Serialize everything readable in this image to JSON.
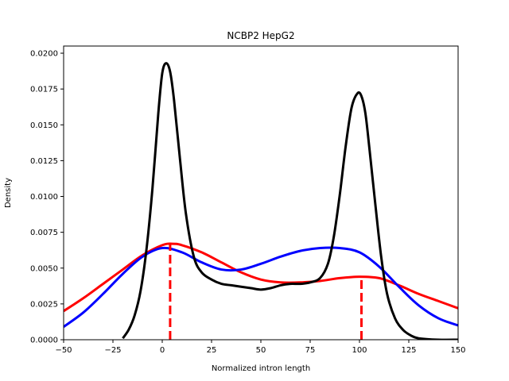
{
  "chart_data": {
    "type": "line",
    "title": "NCBP2 HepG2",
    "xlabel": "Normalized intron length",
    "ylabel": "Density",
    "xlim": [
      -50,
      150
    ],
    "ylim": [
      0,
      0.0205
    ],
    "x_ticks": [
      -50,
      -25,
      0,
      25,
      50,
      75,
      100,
      125,
      150
    ],
    "x_tick_labels": [
      "−50",
      "−25",
      "0",
      "25",
      "50",
      "75",
      "100",
      "125",
      "150"
    ],
    "y_ticks": [
      0,
      0.0025,
      0.005,
      0.0075,
      0.01,
      0.0125,
      0.015,
      0.0175,
      0.02
    ],
    "y_tick_labels": [
      "0.0000",
      "0.0025",
      "0.0050",
      "0.0075",
      "0.0100",
      "0.0125",
      "0.0150",
      "0.0175",
      "0.0200"
    ],
    "grid": false,
    "series": [
      {
        "color": "#ff0000",
        "x": [
          -50,
          -40,
          -30,
          -20,
          -10,
          0,
          5,
          10,
          20,
          30,
          40,
          50,
          60,
          70,
          80,
          90,
          100,
          110,
          120,
          130,
          140,
          150
        ],
        "values": [
          0.002,
          0.0029,
          0.0039,
          0.0049,
          0.0059,
          0.0066,
          0.0067,
          0.0066,
          0.0061,
          0.0054,
          0.0047,
          0.0042,
          0.004,
          0.004,
          0.0041,
          0.0043,
          0.0044,
          0.0043,
          0.0038,
          0.0032,
          0.0027,
          0.0022
        ]
      },
      {
        "color": "#0000ff",
        "x": [
          -50,
          -40,
          -30,
          -20,
          -10,
          0,
          10,
          20,
          30,
          40,
          50,
          60,
          70,
          80,
          90,
          100,
          110,
          120,
          130,
          140,
          150
        ],
        "values": [
          0.0009,
          0.0019,
          0.0032,
          0.0046,
          0.0058,
          0.0064,
          0.0061,
          0.0054,
          0.0049,
          0.0049,
          0.0053,
          0.0058,
          0.0062,
          0.0064,
          0.0064,
          0.0061,
          0.0051,
          0.0037,
          0.0024,
          0.0015,
          0.001
        ]
      },
      {
        "color": "#000000",
        "x": [
          -20,
          -17,
          -14,
          -11,
          -8,
          -5,
          -2,
          0,
          2,
          4,
          6,
          9,
          12,
          16,
          20,
          25,
          30,
          35,
          40,
          45,
          50,
          55,
          60,
          65,
          70,
          75,
          80,
          84,
          87,
          90,
          93,
          96,
          99,
          101,
          103,
          105,
          108,
          111,
          114,
          118,
          122,
          126,
          130,
          140,
          150
        ],
        "values": [
          0.0001,
          0.0007,
          0.0017,
          0.0034,
          0.0063,
          0.0105,
          0.0158,
          0.0186,
          0.0193,
          0.0187,
          0.0167,
          0.0126,
          0.0088,
          0.0058,
          0.0047,
          0.0042,
          0.0039,
          0.0038,
          0.0037,
          0.0036,
          0.0035,
          0.0036,
          0.0038,
          0.0039,
          0.0039,
          0.004,
          0.0043,
          0.0053,
          0.0072,
          0.0101,
          0.0135,
          0.0162,
          0.0172,
          0.017,
          0.0158,
          0.0134,
          0.0095,
          0.0058,
          0.0032,
          0.0015,
          0.0007,
          0.0003,
          0.0001,
          0,
          0
        ]
      }
    ],
    "reference_lines": [
      {
        "x": 4,
        "y_top": 0.0067,
        "color": "#ff0000",
        "style": "dashed"
      },
      {
        "x": 101,
        "y_top": 0.0044,
        "color": "#ff0000",
        "style": "dashed"
      }
    ]
  }
}
